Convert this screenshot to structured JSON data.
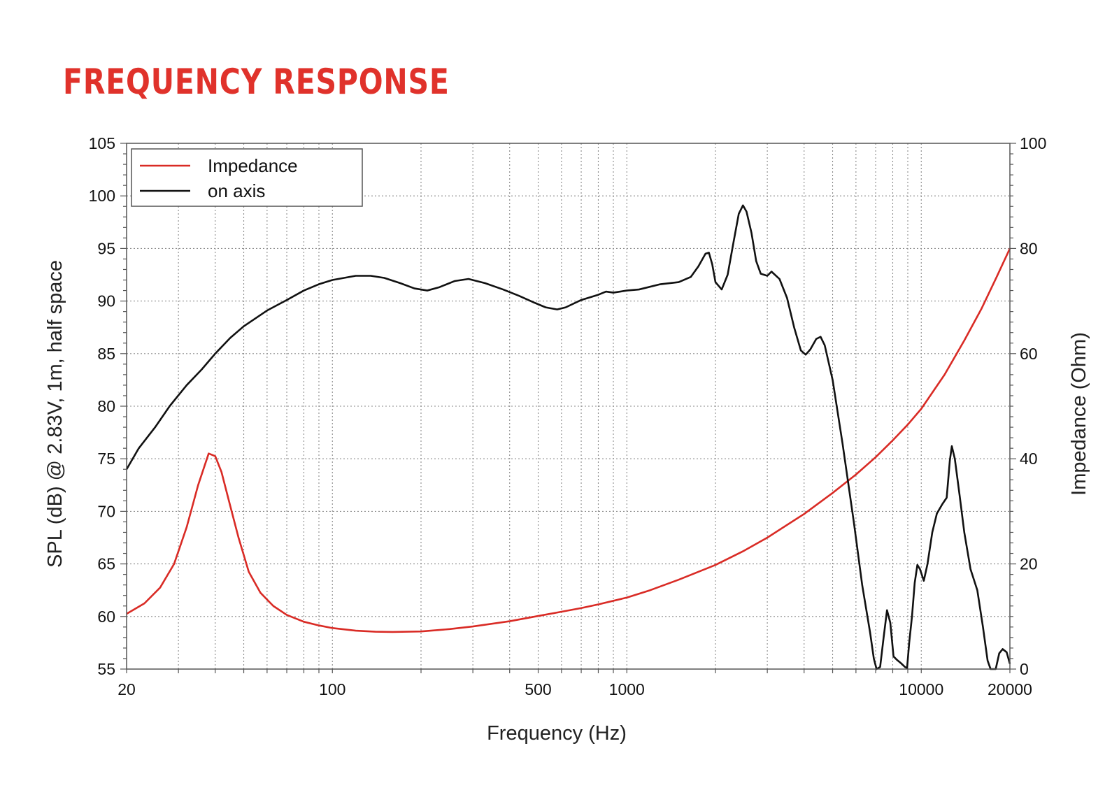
{
  "page": {
    "title": "FREQUENCY RESPONSE"
  },
  "colors": {
    "title": "#e0322b",
    "impedance": "#d92b25",
    "spl": "#111111",
    "grid": "#8a8a8a"
  },
  "chart_data": {
    "type": "line",
    "title": "FREQUENCY RESPONSE",
    "xlabel": "Frequency (Hz)",
    "ylabel": "SPL (dB) @ 2.83V, 1m, half space",
    "y2label": "Impedance (Ohm)",
    "xscale": "log",
    "xlim": [
      20,
      20000
    ],
    "ylim": [
      55,
      105
    ],
    "y2lim": [
      0,
      100
    ],
    "grid": true,
    "legend_position": "top-left",
    "x_ticks": [
      {
        "value": 20,
        "label": "20"
      },
      {
        "value": 100,
        "label": "100"
      },
      {
        "value": 500,
        "label": "500"
      },
      {
        "value": 1000,
        "label": "1000"
      },
      {
        "value": 10000,
        "label": "10000"
      },
      {
        "value": 20000,
        "label": "20000"
      }
    ],
    "y_ticks": [
      {
        "value": 55,
        "label": "55"
      },
      {
        "value": 60,
        "label": "60"
      },
      {
        "value": 65,
        "label": "65"
      },
      {
        "value": 70,
        "label": "70"
      },
      {
        "value": 75,
        "label": "75"
      },
      {
        "value": 80,
        "label": "80"
      },
      {
        "value": 85,
        "label": "85"
      },
      {
        "value": 90,
        "label": "90"
      },
      {
        "value": 95,
        "label": "95"
      },
      {
        "value": 100,
        "label": "100"
      },
      {
        "value": 105,
        "label": "105"
      }
    ],
    "y2_ticks": [
      {
        "value": 0,
        "label": "0"
      },
      {
        "value": 20,
        "label": "20"
      },
      {
        "value": 40,
        "label": "40"
      },
      {
        "value": 60,
        "label": "60"
      },
      {
        "value": 80,
        "label": "80"
      },
      {
        "value": 100,
        "label": "100"
      }
    ],
    "series": [
      {
        "name": "Impedance",
        "axis": "right",
        "color": "#d92b25",
        "points": [
          [
            20,
            10.5
          ],
          [
            23,
            12.5
          ],
          [
            26,
            15.5
          ],
          [
            29,
            20
          ],
          [
            32,
            27
          ],
          [
            35,
            35
          ],
          [
            38,
            41
          ],
          [
            40,
            40.5
          ],
          [
            42,
            37.5
          ],
          [
            45,
            31
          ],
          [
            48,
            25
          ],
          [
            52,
            18.5
          ],
          [
            57,
            14.5
          ],
          [
            63,
            12
          ],
          [
            70,
            10.3
          ],
          [
            80,
            9
          ],
          [
            90,
            8.3
          ],
          [
            100,
            7.8
          ],
          [
            120,
            7.3
          ],
          [
            140,
            7.1
          ],
          [
            160,
            7.05
          ],
          [
            200,
            7.15
          ],
          [
            250,
            7.6
          ],
          [
            300,
            8.1
          ],
          [
            400,
            9.1
          ],
          [
            500,
            10.1
          ],
          [
            600,
            10.9
          ],
          [
            700,
            11.6
          ],
          [
            800,
            12.3
          ],
          [
            1000,
            13.6
          ],
          [
            1200,
            15
          ],
          [
            1500,
            17
          ],
          [
            2000,
            19.8
          ],
          [
            2500,
            22.5
          ],
          [
            3000,
            25
          ],
          [
            4000,
            29.5
          ],
          [
            5000,
            33.5
          ],
          [
            6000,
            37
          ],
          [
            7000,
            40.3
          ],
          [
            8000,
            43.5
          ],
          [
            9000,
            46.5
          ],
          [
            10000,
            49.5
          ],
          [
            12000,
            56
          ],
          [
            14000,
            62.5
          ],
          [
            16000,
            68.5
          ],
          [
            18000,
            74.5
          ],
          [
            20000,
            80
          ]
        ]
      },
      {
        "name": "on axis",
        "axis": "left",
        "color": "#111111",
        "points": [
          [
            20,
            74
          ],
          [
            22,
            76
          ],
          [
            25,
            78
          ],
          [
            28,
            80
          ],
          [
            32,
            82
          ],
          [
            36,
            83.5
          ],
          [
            40,
            85
          ],
          [
            45,
            86.5
          ],
          [
            50,
            87.6
          ],
          [
            60,
            89.1
          ],
          [
            70,
            90.1
          ],
          [
            80,
            91
          ],
          [
            90,
            91.6
          ],
          [
            100,
            92
          ],
          [
            120,
            92.4
          ],
          [
            135,
            92.4
          ],
          [
            150,
            92.2
          ],
          [
            170,
            91.7
          ],
          [
            190,
            91.2
          ],
          [
            210,
            91
          ],
          [
            230,
            91.3
          ],
          [
            260,
            91.9
          ],
          [
            290,
            92.1
          ],
          [
            330,
            91.7
          ],
          [
            380,
            91.1
          ],
          [
            430,
            90.5
          ],
          [
            480,
            89.9
          ],
          [
            530,
            89.4
          ],
          [
            580,
            89.2
          ],
          [
            620,
            89.4
          ],
          [
            700,
            90.1
          ],
          [
            800,
            90.6
          ],
          [
            850,
            90.9
          ],
          [
            900,
            90.8
          ],
          [
            950,
            90.9
          ],
          [
            1000,
            91
          ],
          [
            1100,
            91.1
          ],
          [
            1300,
            91.6
          ],
          [
            1500,
            91.8
          ],
          [
            1650,
            92.3
          ],
          [
            1750,
            93.3
          ],
          [
            1850,
            94.5
          ],
          [
            1900,
            94.6
          ],
          [
            1950,
            93.5
          ],
          [
            2000,
            91.8
          ],
          [
            2100,
            91.1
          ],
          [
            2200,
            92.5
          ],
          [
            2300,
            95.5
          ],
          [
            2400,
            98.3
          ],
          [
            2480,
            99.1
          ],
          [
            2550,
            98.5
          ],
          [
            2650,
            96.5
          ],
          [
            2750,
            93.8
          ],
          [
            2850,
            92.6
          ],
          [
            3000,
            92.4
          ],
          [
            3100,
            92.8
          ],
          [
            3300,
            92.1
          ],
          [
            3500,
            90.3
          ],
          [
            3700,
            87.5
          ],
          [
            3900,
            85.3
          ],
          [
            4050,
            84.9
          ],
          [
            4200,
            85.4
          ],
          [
            4400,
            86.4
          ],
          [
            4550,
            86.6
          ],
          [
            4700,
            85.8
          ],
          [
            5000,
            82.5
          ],
          [
            5400,
            76.5
          ],
          [
            5900,
            69
          ],
          [
            6300,
            63
          ],
          [
            6700,
            58.5
          ],
          [
            6900,
            56
          ],
          [
            7050,
            55
          ],
          [
            7250,
            55.2
          ],
          [
            7450,
            58
          ],
          [
            7650,
            60.6
          ],
          [
            7850,
            59.4
          ],
          [
            8050,
            56.2
          ],
          [
            8250,
            55.9
          ],
          [
            8500,
            55.6
          ],
          [
            8800,
            55.2
          ],
          [
            8950,
            55.1
          ],
          [
            9100,
            57.5
          ],
          [
            9300,
            60
          ],
          [
            9500,
            63.2
          ],
          [
            9700,
            64.9
          ],
          [
            9900,
            64.5
          ],
          [
            10200,
            63.4
          ],
          [
            10500,
            65
          ],
          [
            10900,
            68
          ],
          [
            11300,
            69.8
          ],
          [
            11800,
            70.7
          ],
          [
            12200,
            71.3
          ],
          [
            12500,
            74.8
          ],
          [
            12700,
            76.2
          ],
          [
            13000,
            75
          ],
          [
            13500,
            71.5
          ],
          [
            14000,
            68
          ],
          [
            14700,
            64.5
          ],
          [
            15500,
            62.5
          ],
          [
            16200,
            59
          ],
          [
            16800,
            55.8
          ],
          [
            17200,
            55
          ],
          [
            17900,
            55
          ],
          [
            18400,
            56.5
          ],
          [
            18900,
            56.9
          ],
          [
            19500,
            56.6
          ],
          [
            20000,
            55.5
          ]
        ]
      }
    ]
  }
}
